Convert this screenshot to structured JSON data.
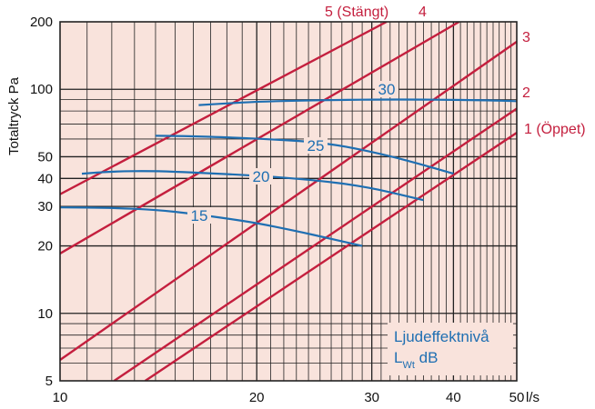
{
  "colors": {
    "plot_background": "#f9e3dc",
    "grid": "#222222",
    "damper_lines": "#c41f3e",
    "sound_lines": "#1f6fb2"
  },
  "chart_data": {
    "type": "line",
    "x_scale": "log",
    "y_scale": "log",
    "xlim": [
      10,
      50
    ],
    "ylim": [
      5,
      200
    ],
    "x_ticks": [
      "10",
      "20",
      "30",
      "40",
      "50"
    ],
    "y_ticks": [
      "5",
      "10",
      "20",
      "30",
      "40",
      "50",
      "100",
      "200"
    ],
    "x_unit": "l/s",
    "ylabel": "Totaltryck Pa",
    "grid": true,
    "series_damper": [
      {
        "name": "1 (Öppet)",
        "points": [
          [
            13.5,
            5
          ],
          [
            50,
            64
          ]
        ]
      },
      {
        "name": "2",
        "points": [
          [
            12.1,
            5
          ],
          [
            50,
            82
          ]
        ]
      },
      {
        "name": "3",
        "points": [
          [
            10,
            6.2
          ],
          [
            50,
            163
          ]
        ]
      },
      {
        "name": "4",
        "points": [
          [
            10,
            18.5
          ],
          [
            40.8,
            200
          ]
        ]
      },
      {
        "name": "5 (Stängt)",
        "points": [
          [
            10,
            34
          ],
          [
            31.6,
            200
          ]
        ]
      }
    ],
    "series_sound": [
      {
        "name": "15",
        "points": [
          [
            10,
            29.7
          ],
          [
            12,
            29.6
          ],
          [
            14,
            29
          ],
          [
            16,
            27.8
          ],
          [
            18,
            26.5
          ],
          [
            20,
            25.3
          ],
          [
            23,
            23.3
          ],
          [
            26,
            21.5
          ],
          [
            29,
            20
          ]
        ]
      },
      {
        "name": "20",
        "points": [
          [
            10.8,
            42
          ],
          [
            12,
            43
          ],
          [
            14,
            43.2
          ],
          [
            16,
            42.5
          ],
          [
            19,
            41.5
          ],
          [
            22,
            40.4
          ],
          [
            25,
            39
          ],
          [
            28,
            37.5
          ],
          [
            31,
            35.5
          ],
          [
            36,
            32
          ]
        ]
      },
      {
        "name": "25",
        "points": [
          [
            14,
            62
          ],
          [
            16,
            61.8
          ],
          [
            18,
            61
          ],
          [
            21,
            59.8
          ],
          [
            24,
            58.5
          ],
          [
            27,
            56
          ],
          [
            31,
            51.5
          ],
          [
            35,
            47
          ],
          [
            40,
            42
          ]
        ]
      },
      {
        "name": "30",
        "points": [
          [
            16.3,
            85
          ],
          [
            18,
            86.5
          ],
          [
            20,
            88
          ],
          [
            23,
            89
          ],
          [
            27,
            89.6
          ],
          [
            31,
            90
          ],
          [
            35,
            90
          ],
          [
            40,
            89.7
          ],
          [
            45,
            89.3
          ],
          [
            50,
            88.5
          ]
        ]
      }
    ],
    "series_labels": {
      "damper_right": [
        "1 (Öppet)",
        "2",
        "3"
      ],
      "damper_top": [
        "5 (Stängt)",
        "4"
      ],
      "sound": [
        "15",
        "20",
        "25",
        "30"
      ]
    },
    "legend": {
      "line1": "Ljudeffektnivå",
      "line2_main": "L",
      "line2_sub": "Wt",
      "line2_unit": " dB",
      "position": "bottom-right"
    }
  }
}
